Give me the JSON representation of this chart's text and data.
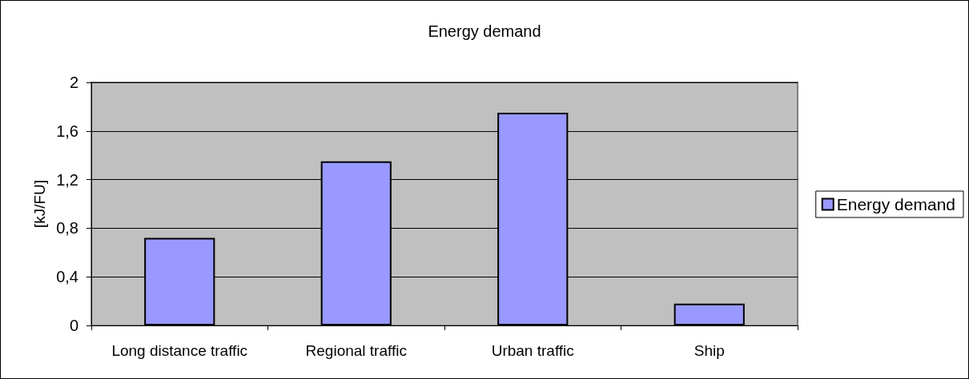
{
  "chart_data": {
    "type": "bar",
    "title": "Energy demand",
    "ylabel": "[kJ/FU]",
    "categories": [
      "Long distance traffic",
      "Regional traffic",
      "Urban traffic",
      "Ship"
    ],
    "series": [
      {
        "name": "Energy demand",
        "color": "#9999ff",
        "values": [
          0.72,
          1.35,
          1.75,
          0.18
        ]
      }
    ],
    "ylim": [
      0,
      2
    ],
    "yticks": [
      0,
      {
        "value": 0.4,
        "label": "0,4"
      },
      {
        "value": 0.8,
        "label": "0,8"
      },
      {
        "value": 1.2,
        "label": "1,2"
      },
      {
        "value": 1.6,
        "label": "1,6"
      },
      2
    ],
    "grid": "y",
    "legend": "right"
  }
}
